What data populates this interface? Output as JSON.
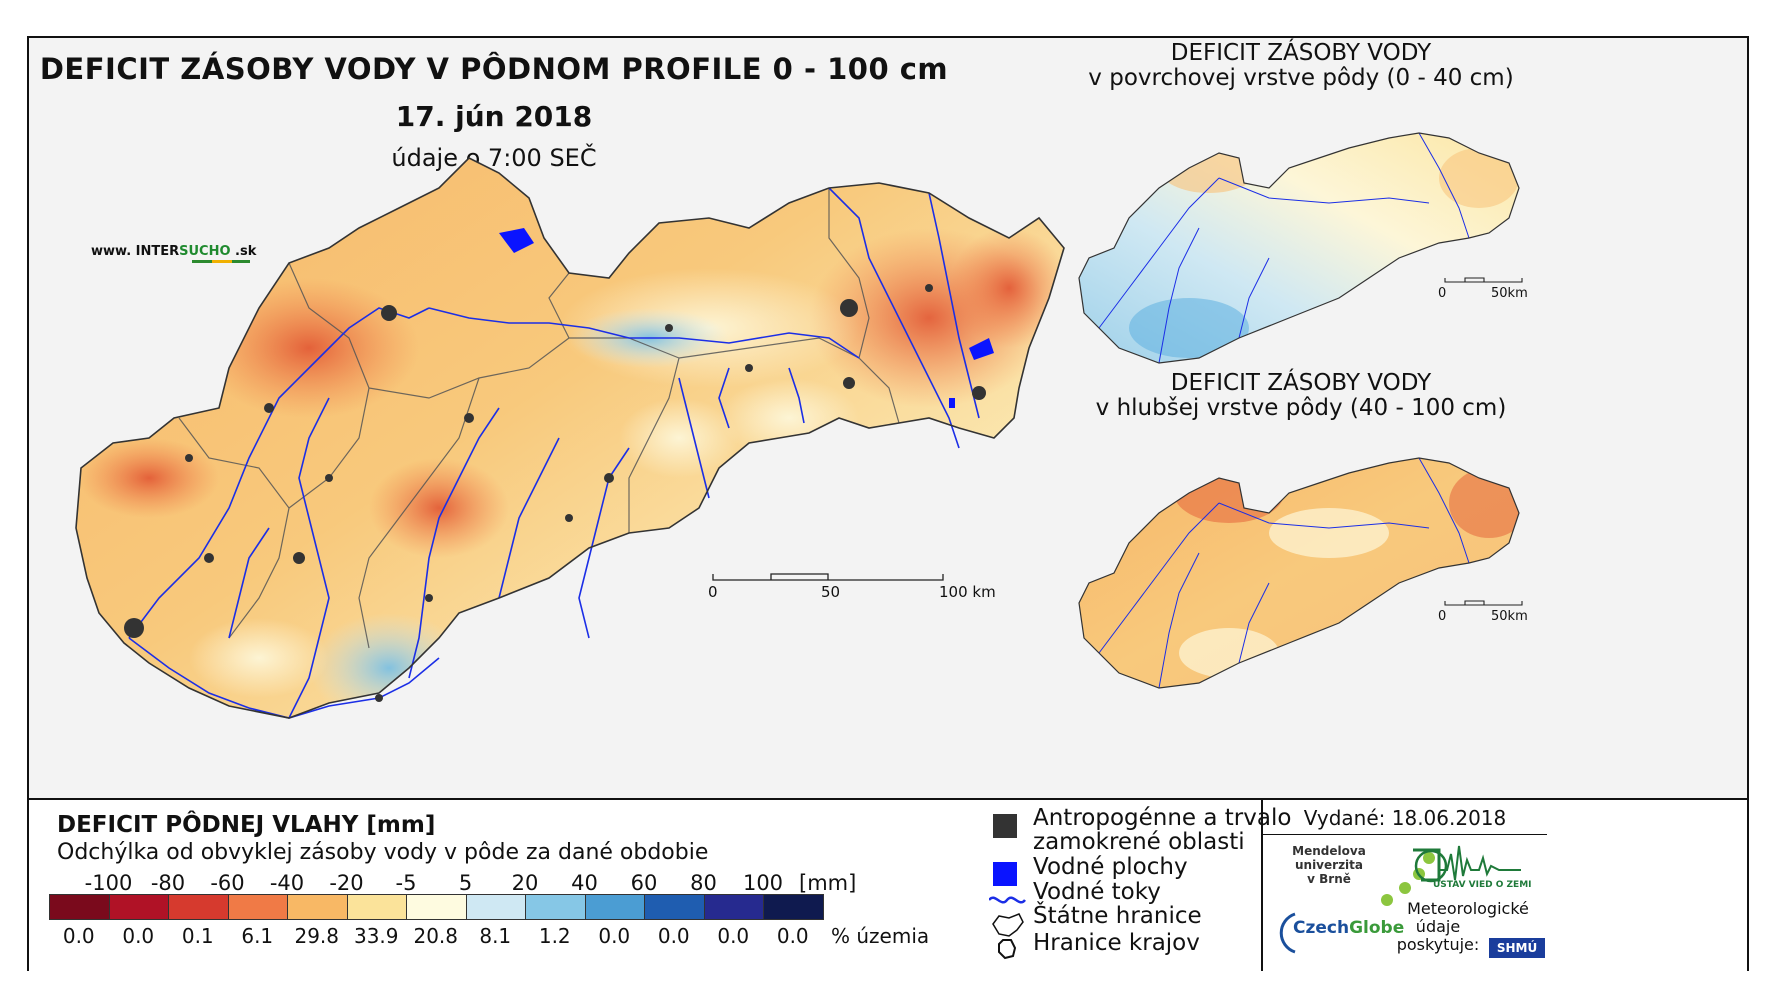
{
  "main_map": {
    "title": "DEFICIT ZÁSOBY VODY V PÔDNOM PROFILE 0 - 100 cm",
    "date": "17. jún 2018",
    "time_note": "údaje o 7:00 SEČ",
    "website": {
      "prefix": "www. INTER",
      "accent": "SUCHO",
      "suffix": " .sk"
    },
    "scale": {
      "labels": [
        "0",
        "50",
        "100 km"
      ]
    }
  },
  "inset_surface": {
    "title_line1": "DEFICIT ZÁSOBY VODY",
    "title_line2": "v povrchovej vrstve pôdy (0 - 40 cm)",
    "scale": {
      "labels": [
        "0",
        "50km"
      ]
    }
  },
  "inset_deep": {
    "title_line1": "DEFICIT ZÁSOBY VODY",
    "title_line2": "v hlubšej vrstve pôdy (40 - 100 cm)",
    "scale": {
      "labels": [
        "0",
        "50km"
      ]
    }
  },
  "legend": {
    "title": "DEFICIT PÔDNEJ VLAHY [mm]",
    "subtitle": "Odchýlka od obvyklej zásoby vody v pôde za dané obdobie",
    "class_breaks": [
      "-100",
      "-80",
      "-60",
      "-40",
      "-20",
      "-5",
      "5",
      "20",
      "40",
      "60",
      "80",
      "100"
    ],
    "unit": "[mm]",
    "colors": [
      "#7a0a1c",
      "#b01226",
      "#d63a2e",
      "#f07a46",
      "#f8b865",
      "#fbe39a",
      "#fefbe0",
      "#cfe8f3",
      "#86c7e6",
      "#4b9dd3",
      "#1f5db0",
      "#262a8f",
      "#0f1a4f"
    ],
    "percentages": [
      "0.0",
      "0.0",
      "0.1",
      "6.1",
      "29.8",
      "33.9",
      "20.8",
      "8.1",
      "1.2",
      "0.0",
      "0.0",
      "0.0",
      "0.0"
    ],
    "percent_label": "% územia"
  },
  "symbols": {
    "urban": "Antropogénne a trvalo",
    "urban2": "zamokrené oblasti",
    "water_bodies": "Vodné plochy",
    "rivers": "Vodné toky",
    "state_border": "Štátne hranice",
    "regions": "Hranice krajov"
  },
  "issued": "Vydané: 18.06.2018",
  "logos": {
    "mendel": [
      "Mendelova",
      "univerzita",
      "v Brně"
    ],
    "czechglobe": {
      "part1": "Czech",
      "part2": "Globe"
    },
    "institute": "ÚSTAV VIED O ZEMI",
    "met_lines": [
      "Meteorologické",
      "údaje",
      "poskytuje:"
    ],
    "shmu": "SHMÚ"
  },
  "colors": {
    "river": "#1b2ee6",
    "urban": "#333333",
    "water": "#0a14ff"
  }
}
